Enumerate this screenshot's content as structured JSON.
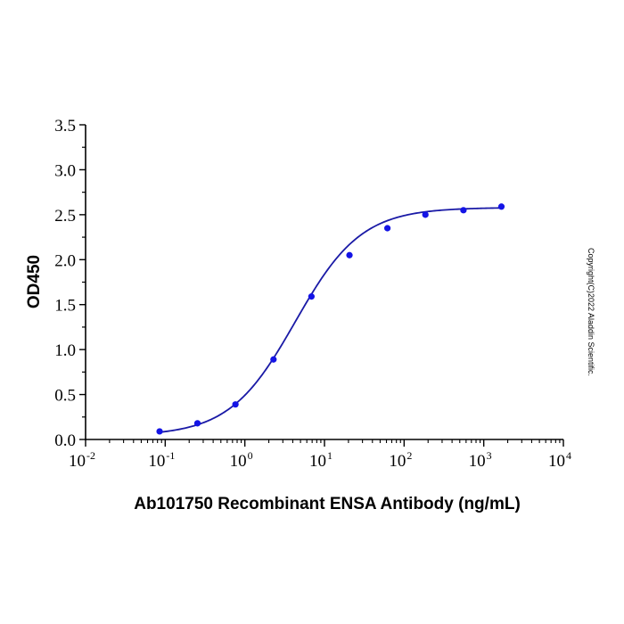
{
  "chart_data": {
    "type": "scatter",
    "title": "",
    "xlabel": "Ab101750 Recombinant ENSA Antibody (ng/mL)",
    "ylabel": "OD450",
    "xscale": "log",
    "xlim": [
      0.01,
      10000
    ],
    "ylim": [
      0,
      3.5
    ],
    "x_ticks": [
      {
        "base": "10",
        "exp": "-2"
      },
      {
        "base": "10",
        "exp": "-1"
      },
      {
        "base": "10",
        "exp": "0"
      },
      {
        "base": "10",
        "exp": "1"
      },
      {
        "base": "10",
        "exp": "2"
      },
      {
        "base": "10",
        "exp": "3"
      },
      {
        "base": "10",
        "exp": "4"
      }
    ],
    "y_ticks": [
      "0.0",
      "0.5",
      "1.0",
      "1.5",
      "2.0",
      "2.5",
      "3.0",
      "3.5"
    ],
    "grid": false,
    "series": [
      {
        "x": [
          0.085,
          0.254,
          0.762,
          2.29,
          6.86,
          20.6,
          61.7,
          185,
          556,
          1667
        ],
        "y": [
          0.09,
          0.18,
          0.39,
          0.89,
          1.59,
          2.05,
          2.35,
          2.5,
          2.55,
          2.59
        ],
        "color": "#1414e6",
        "fit": "4PL sigmoid"
      }
    ],
    "fit_color": "#1a1aa6",
    "annotation": "Copyright(C)2022 Aladdin Scientific."
  }
}
